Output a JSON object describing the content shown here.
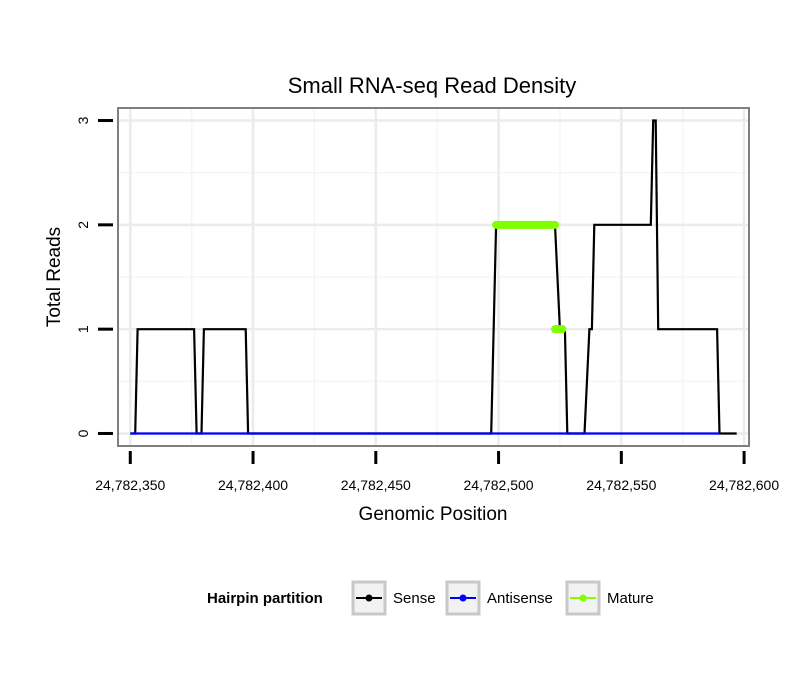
{
  "chart_data": {
    "type": "line",
    "title": "Small RNA-seq Read Density",
    "xlabel": "Genomic Position",
    "ylabel": "Total Reads",
    "xlim": [
      24782345,
      24782602
    ],
    "ylim": [
      -0.12,
      3.12
    ],
    "x_ticks": [
      24782350,
      24782400,
      24782450,
      24782500,
      24782550,
      24782600
    ],
    "x_tick_labels": [
      "24,782,350",
      "24,782,400",
      "24,782,450",
      "24,782,500",
      "24,782,550",
      "24,782,600"
    ],
    "y_ticks": [
      0,
      1,
      2,
      3
    ],
    "y_tick_labels": [
      "0",
      "1",
      "2",
      "3"
    ],
    "grid": true,
    "legend": {
      "title": "Hairpin partition",
      "placement": "bottom",
      "entries": [
        {
          "name": "Sense",
          "color": "#000000"
        },
        {
          "name": "Antisense",
          "color": "#0000ff"
        },
        {
          "name": "Mature",
          "color": "#7fff00"
        }
      ]
    },
    "series": [
      {
        "name": "Sense",
        "color": "#000000",
        "x": [
          24782350,
          24782352,
          24782353,
          24782376,
          24782377,
          24782378,
          24782379,
          24782380,
          24782397,
          24782398,
          24782497,
          24782499,
          24782523,
          24782525,
          24782527,
          24782528,
          24782535,
          24782537,
          24782538,
          24782539,
          24782562,
          24782563,
          24782564,
          24782565,
          24782589,
          24782590,
          24782597
        ],
        "y": [
          0,
          0,
          1,
          1,
          0,
          0,
          0,
          1,
          1,
          0,
          0,
          2,
          2,
          1,
          1,
          0,
          0,
          1,
          1,
          2,
          2,
          3,
          3,
          1,
          1,
          0,
          0
        ]
      },
      {
        "name": "Antisense",
        "color": "#0000ff",
        "x": [
          24782350,
          24782590
        ],
        "y": [
          0,
          0
        ]
      },
      {
        "name": "Mature",
        "color": "#7fff00",
        "segments": [
          {
            "x": [
              24782499,
              24782523
            ],
            "y": [
              2,
              2
            ]
          },
          {
            "x": [
              24782523,
              24782526
            ],
            "y": [
              1,
              1
            ]
          }
        ]
      }
    ]
  }
}
